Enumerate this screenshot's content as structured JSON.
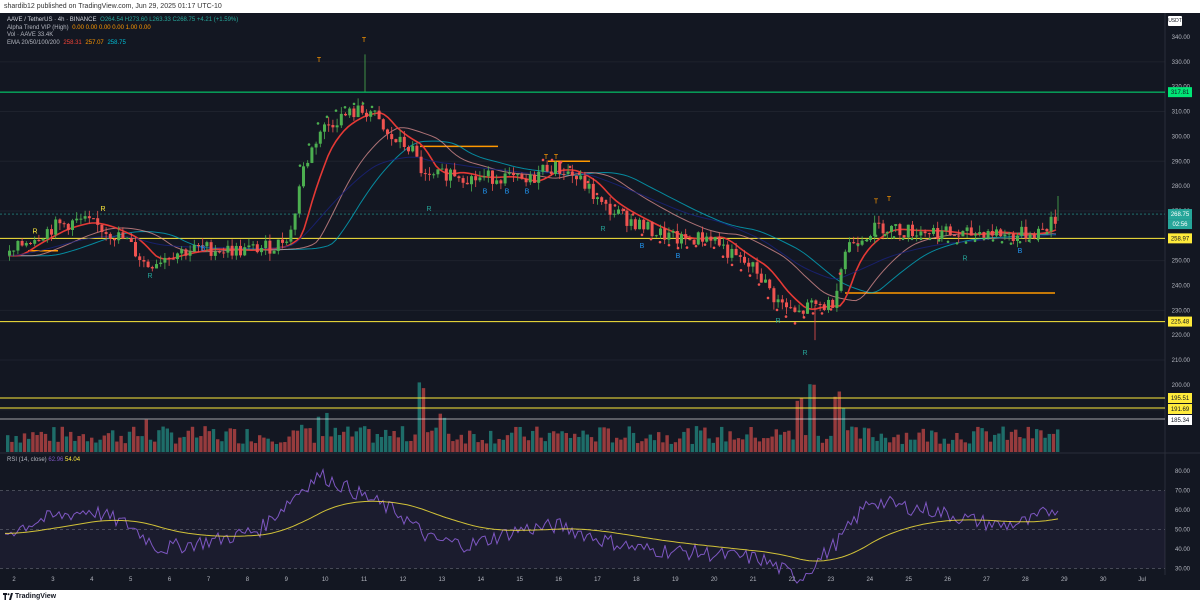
{
  "caption": "shardib12 published on TradingView.com, Jun 29, 2025 01:17 UTC-10",
  "legend": {
    "symbol": "AAVE / TetherUS · 4h · BINANCE",
    "ohlc": "O264.54 H273.60 L263.33 C268.75 +4.21 (+1.59%)",
    "alpha": "Alpha Trend VIP (High)",
    "alpha_vals": "0.00 0.00 0.00 0.00 1.00 0.00",
    "vol": "Vol · AAVE 33.4K",
    "ema": "EMA 20/50/100/200",
    "ema_vals": [
      "258.31",
      "257.07",
      "258.75"
    ]
  },
  "rsi_legend": {
    "label": "RSI (14, close)",
    "v1": "62.96",
    "v2": "54.04"
  },
  "currency": "USDT",
  "price_ticks": [
    "340.00",
    "330.00",
    "320.00",
    "310.00",
    "300.00",
    "290.00",
    "280.00",
    "270.00",
    "260.00",
    "250.00",
    "240.00",
    "230.00",
    "220.00",
    "210.00",
    "200.00"
  ],
  "price_badges": {
    "upper": "317.81",
    "last": "268.75",
    "timer": "02:56",
    "support": "258.97",
    "lower": "225.48",
    "b1": "195.51",
    "b2": "191.69",
    "b3": "185.34"
  },
  "rsi_ticks": [
    "80.00",
    "70.00",
    "60.00",
    "50.00",
    "40.00",
    "30.00"
  ],
  "x_labels": [
    "2",
    "3",
    "4",
    "5",
    "6",
    "7",
    "8",
    "9",
    "10",
    "11",
    "12",
    "13",
    "14",
    "15",
    "16",
    "17",
    "18",
    "19",
    "20",
    "21",
    "22",
    "23",
    "24",
    "25",
    "26",
    "27",
    "28",
    "29",
    "30",
    "Jul"
  ],
  "markers": {
    "top": "T",
    "bottom": "B",
    "reversal": "R"
  },
  "brand": "TradingView",
  "colors": {
    "up": "#26a69a",
    "down": "#ef5350",
    "upBright": "#4caf50",
    "background": "#131722",
    "level": "#ffeb3b",
    "top": "#ff9800",
    "green": "#00e676"
  }
}
